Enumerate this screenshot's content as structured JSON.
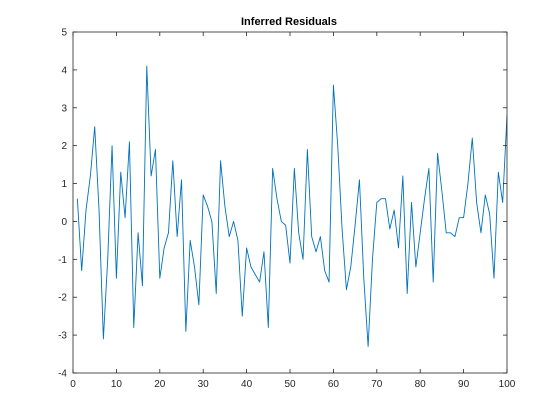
{
  "chart_data": {
    "type": "line",
    "title": "Inferred Residuals",
    "xlabel": "",
    "ylabel": "",
    "xlim": [
      0,
      100
    ],
    "ylim": [
      -4,
      5
    ],
    "xticks": [
      0,
      10,
      20,
      30,
      40,
      50,
      60,
      70,
      80,
      90,
      100
    ],
    "yticks": [
      -4,
      -3,
      -2,
      -1,
      0,
      1,
      2,
      3,
      4,
      5
    ],
    "grid": false,
    "series": [
      {
        "color": "#0072bd",
        "x": [
          1,
          2,
          3,
          4,
          5,
          6,
          7,
          8,
          9,
          10,
          11,
          12,
          13,
          14,
          15,
          16,
          17,
          18,
          19,
          20,
          21,
          22,
          23,
          24,
          25,
          26,
          27,
          28,
          29,
          30,
          31,
          32,
          33,
          34,
          35,
          36,
          37,
          38,
          39,
          40,
          41,
          42,
          43,
          44,
          45,
          46,
          47,
          48,
          49,
          50,
          51,
          52,
          53,
          54,
          55,
          56,
          57,
          58,
          59,
          60,
          61,
          62,
          63,
          64,
          65,
          66,
          67,
          68,
          69,
          70,
          71,
          72,
          73,
          74,
          75,
          76,
          77,
          78,
          79,
          80,
          81,
          82,
          83,
          84,
          85,
          86,
          87,
          88,
          89,
          90,
          91,
          92,
          93,
          94,
          95,
          96,
          97,
          98,
          99,
          100
        ],
        "y": [
          0.6,
          -1.3,
          0.3,
          1.2,
          2.5,
          0.3,
          -3.1,
          -1.0,
          2.0,
          -1.5,
          1.3,
          0.1,
          2.1,
          -2.8,
          -0.3,
          -1.7,
          4.1,
          1.2,
          1.9,
          -1.5,
          -0.7,
          -0.3,
          1.6,
          -0.4,
          1.1,
          -2.9,
          -0.5,
          -1.2,
          -2.2,
          0.7,
          0.4,
          0.0,
          -1.9,
          1.6,
          0.4,
          -0.4,
          0.0,
          -0.5,
          -2.5,
          -0.7,
          -1.2,
          -1.4,
          -1.6,
          -0.8,
          -2.8,
          1.4,
          0.6,
          0.0,
          -0.1,
          -1.1,
          1.4,
          -0.3,
          -1.0,
          1.9,
          -0.4,
          -0.8,
          -0.4,
          -1.3,
          -1.6,
          3.6,
          2.0,
          -0.2,
          -1.8,
          -1.2,
          -0.1,
          1.1,
          -1.5,
          -3.3,
          -1.0,
          0.5,
          0.6,
          0.6,
          -0.2,
          0.3,
          -0.7,
          1.2,
          -1.9,
          0.5,
          -1.2,
          -0.3,
          0.6,
          1.4,
          -1.6,
          1.8,
          0.8,
          -0.3,
          -0.3,
          -0.4,
          0.1,
          0.1,
          1.0,
          2.2,
          0.5,
          -0.3,
          0.7,
          0.2,
          -1.5,
          1.3,
          0.5,
          2.8
        ]
      }
    ]
  }
}
